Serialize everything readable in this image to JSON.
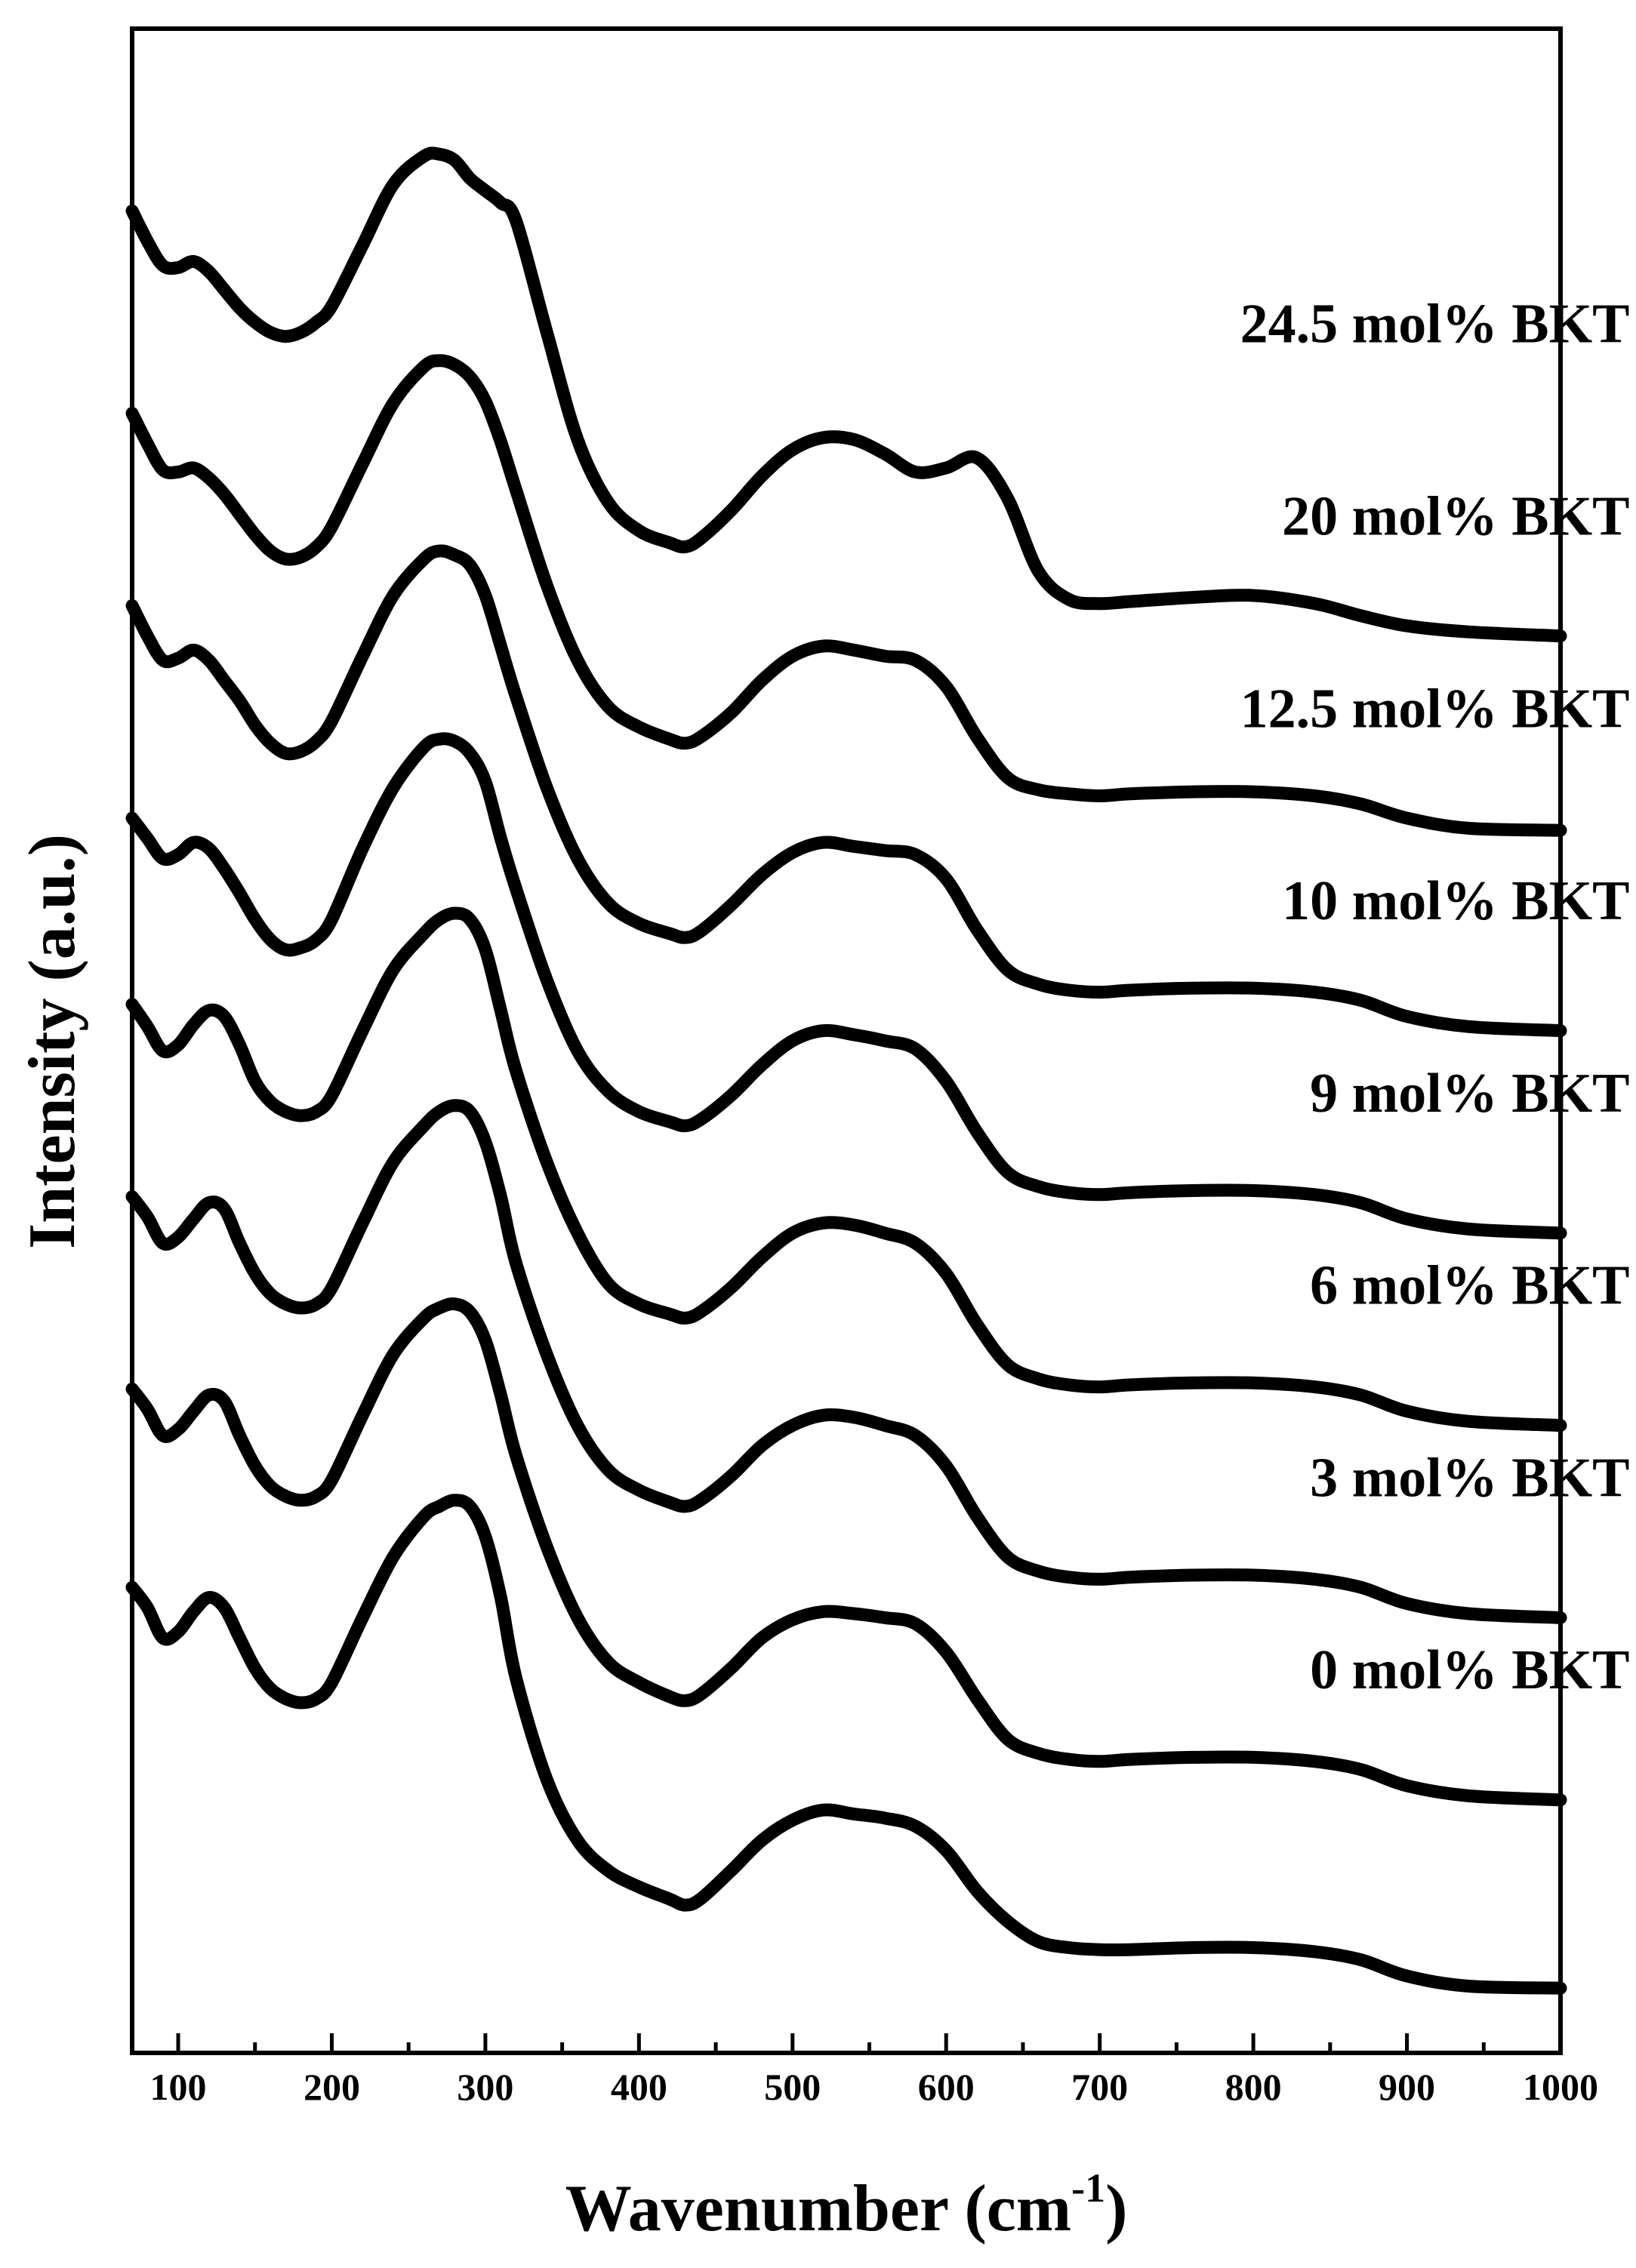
{
  "chart_data": {
    "type": "line",
    "xlabel": "Wavenumber (cm",
    "xlabel_sup": "-1",
    "xlabel_close": ")",
    "ylabel": "Intensity (a.u.)",
    "xlim": [
      70,
      1000
    ],
    "ylim": [
      0,
      100
    ],
    "y_ticks_shown": false,
    "grid": false,
    "x_ticks": [
      100,
      200,
      300,
      400,
      500,
      600,
      700,
      800,
      900,
      1000
    ],
    "x_tick_labels": [
      "100",
      "200",
      "300",
      "400",
      "500",
      "600",
      "700",
      "800",
      "900",
      "1000"
    ],
    "label_x": 1045,
    "series": [
      {
        "name": "0 mol% BKT",
        "label_y": 18.0,
        "x": [
          70,
          80,
          90,
          100,
          110,
          120,
          130,
          140,
          150,
          160,
          170,
          180,
          190,
          200,
          220,
          240,
          260,
          270,
          280,
          290,
          300,
          310,
          320,
          340,
          360,
          380,
          400,
          420,
          430,
          440,
          460,
          480,
          500,
          520,
          540,
          560,
          580,
          600,
          620,
          640,
          660,
          680,
          700,
          720,
          760,
          800,
          840,
          870,
          900,
          940,
          1000
        ],
        "y": [
          23.0,
          22.0,
          20.5,
          20.8,
          21.8,
          22.5,
          22.0,
          20.5,
          19.0,
          18.0,
          17.5,
          17.3,
          17.5,
          18.3,
          21.5,
          24.5,
          26.5,
          27.0,
          27.3,
          27.0,
          25.5,
          22.5,
          18.5,
          13.5,
          10.5,
          9.0,
          8.2,
          7.6,
          7.3,
          7.6,
          9.0,
          10.5,
          11.5,
          12.0,
          11.8,
          11.6,
          11.2,
          10.0,
          8.0,
          6.5,
          5.5,
          5.2,
          5.1,
          5.1,
          5.2,
          5.2,
          5.0,
          4.6,
          3.8,
          3.3,
          3.2
        ]
      },
      {
        "name": "3 mol% BKT",
        "label_y": 27.5,
        "x": [
          70,
          80,
          90,
          100,
          110,
          120,
          130,
          140,
          150,
          160,
          170,
          180,
          190,
          200,
          220,
          240,
          260,
          270,
          280,
          290,
          300,
          310,
          320,
          340,
          360,
          380,
          400,
          420,
          430,
          440,
          460,
          480,
          500,
          520,
          540,
          560,
          580,
          600,
          620,
          640,
          660,
          680,
          700,
          720,
          760,
          800,
          840,
          870,
          900,
          940,
          1000
        ],
        "y": [
          32.8,
          31.8,
          30.5,
          30.8,
          31.7,
          32.5,
          32.2,
          30.5,
          29.0,
          28.0,
          27.5,
          27.3,
          27.5,
          28.3,
          31.5,
          34.5,
          36.3,
          36.8,
          37.0,
          36.6,
          35.2,
          32.5,
          29.5,
          25.0,
          21.5,
          19.3,
          18.3,
          17.6,
          17.4,
          17.7,
          19.0,
          20.5,
          21.4,
          21.8,
          21.7,
          21.5,
          21.2,
          19.8,
          17.5,
          15.5,
          14.8,
          14.5,
          14.4,
          14.5,
          14.6,
          14.6,
          14.4,
          14.0,
          13.2,
          12.7,
          12.5
        ]
      },
      {
        "name": "6 mol% BKT",
        "label_y": 37.0,
        "x": [
          70,
          80,
          90,
          100,
          110,
          120,
          130,
          140,
          150,
          160,
          170,
          180,
          190,
          200,
          220,
          240,
          260,
          270,
          280,
          290,
          300,
          310,
          320,
          340,
          360,
          380,
          400,
          420,
          430,
          440,
          460,
          480,
          500,
          520,
          540,
          560,
          580,
          600,
          620,
          640,
          660,
          680,
          700,
          720,
          760,
          800,
          840,
          870,
          900,
          940,
          1000
        ],
        "y": [
          42.3,
          41.3,
          40.0,
          40.3,
          41.2,
          42.0,
          41.7,
          40.0,
          38.5,
          37.5,
          37.0,
          36.8,
          37.0,
          37.8,
          41.0,
          44.0,
          45.8,
          46.5,
          46.8,
          46.5,
          45.0,
          42.3,
          39.0,
          34.5,
          31.0,
          28.8,
          27.8,
          27.2,
          27.0,
          27.3,
          28.5,
          30.0,
          31.0,
          31.5,
          31.4,
          31.0,
          30.5,
          29.0,
          26.5,
          24.5,
          23.8,
          23.5,
          23.4,
          23.5,
          23.6,
          23.6,
          23.4,
          23.0,
          22.2,
          21.7,
          21.5
        ]
      },
      {
        "name": "9 mol% BKT",
        "label_y": 46.5,
        "x": [
          70,
          80,
          90,
          100,
          110,
          120,
          130,
          140,
          150,
          160,
          170,
          180,
          190,
          200,
          220,
          240,
          260,
          270,
          280,
          290,
          300,
          310,
          320,
          340,
          360,
          380,
          400,
          420,
          430,
          440,
          460,
          480,
          500,
          520,
          540,
          560,
          580,
          600,
          620,
          640,
          660,
          680,
          700,
          720,
          760,
          800,
          840,
          870,
          900,
          940,
          1000
        ],
        "y": [
          51.8,
          50.7,
          49.5,
          49.8,
          50.8,
          51.5,
          51.2,
          49.8,
          48.0,
          47.0,
          46.5,
          46.3,
          46.5,
          47.3,
          50.5,
          53.5,
          55.3,
          56.0,
          56.3,
          56.0,
          54.5,
          51.5,
          48.5,
          44.0,
          40.5,
          38.0,
          37.0,
          36.5,
          36.3,
          36.6,
          37.8,
          39.3,
          40.5,
          41.0,
          40.9,
          40.5,
          40.0,
          38.5,
          36.0,
          34.0,
          33.3,
          33.0,
          32.9,
          33.0,
          33.1,
          33.1,
          32.9,
          32.5,
          31.7,
          31.2,
          31.0
        ]
      },
      {
        "name": "10 mol% BKT",
        "label_y": 56.0,
        "x": [
          70,
          80,
          90,
          100,
          110,
          120,
          130,
          140,
          150,
          160,
          170,
          180,
          190,
          200,
          220,
          240,
          260,
          270,
          280,
          290,
          300,
          310,
          320,
          340,
          360,
          380,
          400,
          420,
          430,
          440,
          460,
          480,
          500,
          520,
          540,
          560,
          580,
          600,
          620,
          640,
          660,
          680,
          700,
          720,
          760,
          800,
          840,
          870,
          900,
          940,
          1000
        ],
        "y": [
          61.0,
          60.0,
          59.0,
          59.2,
          59.8,
          59.5,
          58.5,
          57.3,
          56.0,
          55.0,
          54.5,
          54.6,
          55.0,
          56.0,
          59.5,
          62.5,
          64.5,
          64.9,
          64.8,
          64.2,
          62.8,
          60.0,
          57.5,
          53.0,
          49.5,
          47.5,
          46.5,
          46.0,
          45.8,
          46.1,
          47.3,
          48.8,
          50.0,
          50.5,
          50.3,
          50.0,
          49.6,
          48.0,
          45.5,
          43.5,
          42.8,
          42.5,
          42.4,
          42.5,
          42.6,
          42.6,
          42.4,
          42.0,
          41.2,
          40.7,
          40.5
        ]
      },
      {
        "name": "12.5 mol% BKT",
        "label_y": 65.5,
        "x": [
          70,
          80,
          90,
          100,
          110,
          120,
          130,
          140,
          150,
          160,
          170,
          180,
          190,
          200,
          220,
          240,
          260,
          270,
          280,
          290,
          300,
          310,
          320,
          340,
          360,
          380,
          400,
          420,
          430,
          440,
          460,
          480,
          500,
          520,
          540,
          560,
          580,
          600,
          620,
          640,
          660,
          680,
          700,
          720,
          760,
          800,
          840,
          870,
          900,
          940,
          1000
        ],
        "y": [
          71.5,
          70.0,
          68.8,
          68.9,
          69.3,
          68.8,
          67.8,
          66.8,
          65.6,
          64.7,
          64.2,
          64.3,
          64.8,
          65.8,
          69.0,
          72.0,
          73.8,
          74.2,
          74.0,
          73.5,
          72.0,
          69.5,
          67.0,
          62.5,
          59.0,
          56.8,
          55.8,
          55.3,
          55.1,
          55.4,
          56.7,
          58.2,
          59.3,
          59.8,
          59.6,
          59.4,
          59.2,
          58.0,
          55.5,
          53.5,
          52.8,
          52.5,
          52.4,
          52.5,
          52.6,
          52.6,
          52.4,
          52.0,
          51.2,
          50.7,
          50.5
        ]
      },
      {
        "name": "20 mol% BKT",
        "label_y": 75.0,
        "x": [
          70,
          80,
          90,
          100,
          110,
          120,
          130,
          140,
          150,
          160,
          170,
          180,
          190,
          200,
          220,
          240,
          260,
          270,
          280,
          290,
          300,
          310,
          320,
          340,
          360,
          380,
          400,
          420,
          430,
          440,
          460,
          480,
          500,
          520,
          540,
          560,
          580,
          600,
          620,
          640,
          660,
          680,
          700,
          720,
          760,
          800,
          840,
          870,
          900,
          940,
          1000
        ],
        "y": [
          81.0,
          79.5,
          78.2,
          78.1,
          78.3,
          77.8,
          77.0,
          76.0,
          75.0,
          74.2,
          73.8,
          73.9,
          74.4,
          75.4,
          78.5,
          81.5,
          83.3,
          83.6,
          83.4,
          82.8,
          81.6,
          79.6,
          77.2,
          72.5,
          68.8,
          66.5,
          65.5,
          64.9,
          64.7,
          65.0,
          66.2,
          67.8,
          69.0,
          69.5,
          69.3,
          69.0,
          68.8,
          67.5,
          65.0,
          63.0,
          62.4,
          62.2,
          62.1,
          62.2,
          62.3,
          62.3,
          62.1,
          61.7,
          61.0,
          60.5,
          60.4
        ]
      },
      {
        "name": "24.5 mol% BKT",
        "label_y": 84.5,
        "x": [
          70,
          80,
          90,
          100,
          110,
          120,
          130,
          140,
          150,
          160,
          170,
          180,
          190,
          200,
          220,
          240,
          260,
          270,
          280,
          290,
          300,
          310,
          320,
          340,
          360,
          380,
          400,
          420,
          430,
          440,
          460,
          480,
          500,
          520,
          540,
          560,
          580,
          600,
          620,
          640,
          660,
          680,
          700,
          720,
          760,
          800,
          840,
          870,
          900,
          940,
          1000
        ],
        "y": [
          91.0,
          89.5,
          88.3,
          88.2,
          88.5,
          88.0,
          87.1,
          86.2,
          85.5,
          85.0,
          84.8,
          85.0,
          85.5,
          86.3,
          89.3,
          92.3,
          93.7,
          93.8,
          93.5,
          92.6,
          92.0,
          91.4,
          90.5,
          85.0,
          79.7,
          76.6,
          75.2,
          74.6,
          74.4,
          74.8,
          76.2,
          77.9,
          79.2,
          79.8,
          79.7,
          79.0,
          78.1,
          78.3,
          78.8,
          76.8,
          73.2,
          71.8,
          71.6,
          71.7,
          71.9,
          72.0,
          71.6,
          71.0,
          70.5,
          70.2,
          70.0
        ]
      }
    ]
  }
}
